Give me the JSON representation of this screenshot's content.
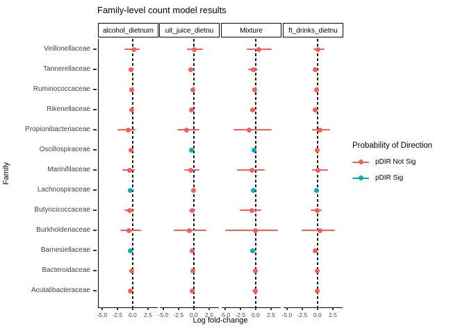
{
  "title": "Family-level count model results",
  "axes": {
    "x_label": "Log fold-change",
    "y_label": "Family"
  },
  "legend": {
    "title": "Probability of Direction",
    "items": [
      {
        "label": "pDIR Not Sig",
        "color": "#F26158"
      },
      {
        "label": "pDIR Sig",
        "color": "#00AFB4"
      }
    ]
  },
  "chart_data": {
    "type": "pointrange-facets",
    "title": "Family-level count model results",
    "xlabel": "Log fold-change",
    "ylabel": "Family",
    "xlim": [
      -5.55,
      4.1
    ],
    "x_tick_values": [
      -5.0,
      -2.5,
      0.0,
      2.5
    ],
    "x_tick_labels": [
      "-5.0",
      "-2.5",
      "0.0",
      "2.5"
    ],
    "zero_line": 0,
    "grid": false,
    "legend_position": "right",
    "colors": {
      "not_sig": "#F26158",
      "sig": "#00AFB4"
    },
    "facets": [
      "alcohol_dietnum",
      "uit_juice_dietnu",
      "Mixture",
      "ft_drinks_dietnu"
    ],
    "families": [
      "Veillonellaceae",
      "Tannerellaceae",
      "Ruminococcaceae",
      "Rikenellaceae",
      "Propionibacteriaceae",
      "Oscillospiraceae",
      "Marinifilaceae",
      "Lachnospiraceae",
      "Butyricicoccaceae",
      "Burkholderiaceae",
      "Barnesiellaceae",
      "Bacteroidaceae",
      "Acutalibacteraceae"
    ],
    "series": [
      {
        "facet": "alcohol_dietnum",
        "points": [
          {
            "v": 0.2,
            "lo": -1.3,
            "hi": 1.1,
            "sig": false
          },
          {
            "v": -0.25,
            "lo": -0.5,
            "hi": 0.05,
            "sig": false
          },
          {
            "v": -0.2,
            "lo": -0.45,
            "hi": 0.05,
            "sig": false
          },
          {
            "v": -0.2,
            "lo": -0.5,
            "hi": 0.1,
            "sig": false
          },
          {
            "v": -0.75,
            "lo": -2.5,
            "hi": 0.5,
            "sig": false
          },
          {
            "v": -0.25,
            "lo": -0.5,
            "hi": 0.05,
            "sig": false
          },
          {
            "v": -0.5,
            "lo": -1.7,
            "hi": 0.4,
            "sig": false
          },
          {
            "v": -0.35,
            "lo": -0.55,
            "hi": -0.1,
            "sig": true
          },
          {
            "v": -0.5,
            "lo": -1.3,
            "hi": 0.2,
            "sig": false
          },
          {
            "v": -0.65,
            "lo": -2.0,
            "hi": 1.4,
            "sig": false
          },
          {
            "v": -0.35,
            "lo": -0.6,
            "hi": -0.1,
            "sig": true
          },
          {
            "v": -0.2,
            "lo": -0.45,
            "hi": 0.1,
            "sig": false
          },
          {
            "v": -0.35,
            "lo": -0.75,
            "hi": 0.05,
            "sig": false
          }
        ]
      },
      {
        "facet": "uit_juice_dietnu",
        "points": [
          {
            "v": 0.05,
            "lo": -1.1,
            "hi": 1.5,
            "sig": false
          },
          {
            "v": -0.45,
            "lo": -0.9,
            "hi": 0.1,
            "sig": false
          },
          {
            "v": -0.2,
            "lo": -0.45,
            "hi": 0.1,
            "sig": false
          },
          {
            "v": -0.35,
            "lo": -0.7,
            "hi": 0.05,
            "sig": false
          },
          {
            "v": -1.2,
            "lo": -2.7,
            "hi": 0.9,
            "sig": false
          },
          {
            "v": -0.35,
            "lo": -0.6,
            "hi": -0.1,
            "sig": true
          },
          {
            "v": -0.45,
            "lo": -1.6,
            "hi": 0.9,
            "sig": false
          },
          {
            "v": -0.1,
            "lo": -0.35,
            "hi": 0.15,
            "sig": false
          },
          {
            "v": -0.3,
            "lo": -0.75,
            "hi": 0.2,
            "sig": false
          },
          {
            "v": -0.7,
            "lo": -3.3,
            "hi": 2.1,
            "sig": false
          },
          {
            "v": -0.3,
            "lo": -0.65,
            "hi": 0.1,
            "sig": false
          },
          {
            "v": -0.2,
            "lo": -0.45,
            "hi": 0.1,
            "sig": false
          },
          {
            "v": -0.25,
            "lo": -0.6,
            "hi": 0.15,
            "sig": false
          }
        ]
      },
      {
        "facet": "Mixture",
        "points": [
          {
            "v": 0.55,
            "lo": -1.5,
            "hi": 2.6,
            "sig": false
          },
          {
            "v": -0.4,
            "lo": -1.2,
            "hi": 0.4,
            "sig": false
          },
          {
            "v": -0.2,
            "lo": -0.5,
            "hi": 0.15,
            "sig": false
          },
          {
            "v": -0.45,
            "lo": -0.85,
            "hi": 0.0,
            "sig": false
          },
          {
            "v": -1.1,
            "lo": -3.6,
            "hi": 2.6,
            "sig": false
          },
          {
            "v": -0.3,
            "lo": -0.6,
            "hi": -0.05,
            "sig": true
          },
          {
            "v": -0.6,
            "lo": -3.0,
            "hi": 1.5,
            "sig": false
          },
          {
            "v": -0.35,
            "lo": -0.6,
            "hi": -0.1,
            "sig": true
          },
          {
            "v": -0.6,
            "lo": -2.6,
            "hi": 0.9,
            "sig": false
          },
          {
            "v": 0.0,
            "lo": -5.0,
            "hi": 3.6,
            "sig": false
          },
          {
            "v": -0.55,
            "lo": -0.85,
            "hi": -0.25,
            "sig": true
          },
          {
            "v": -0.1,
            "lo": -0.45,
            "hi": 0.2,
            "sig": false
          },
          {
            "v": -0.1,
            "lo": -0.5,
            "hi": 0.3,
            "sig": false
          }
        ]
      },
      {
        "facet": "ft_drinks_dietnu",
        "points": [
          {
            "v": 0.1,
            "lo": -0.7,
            "hi": 1.1,
            "sig": false
          },
          {
            "v": -0.35,
            "lo": -0.65,
            "hi": 0.0,
            "sig": false
          },
          {
            "v": -0.2,
            "lo": -0.45,
            "hi": 0.05,
            "sig": false
          },
          {
            "v": -0.4,
            "lo": -0.75,
            "hi": 0.0,
            "sig": false
          },
          {
            "v": 0.4,
            "lo": -0.9,
            "hi": 2.1,
            "sig": false
          },
          {
            "v": -0.1,
            "lo": -0.35,
            "hi": 0.15,
            "sig": false
          },
          {
            "v": 0.1,
            "lo": -0.9,
            "hi": 1.7,
            "sig": false
          },
          {
            "v": -0.2,
            "lo": -0.4,
            "hi": 0.0,
            "sig": true
          },
          {
            "v": 0.0,
            "lo": -1.1,
            "hi": 0.75,
            "sig": false
          },
          {
            "v": 0.4,
            "lo": -2.6,
            "hi": 2.8,
            "sig": false
          },
          {
            "v": -0.4,
            "lo": -0.75,
            "hi": 0.05,
            "sig": false
          },
          {
            "v": -0.1,
            "lo": -0.35,
            "hi": 0.15,
            "sig": false
          },
          {
            "v": 0.0,
            "lo": -0.3,
            "hi": 0.3,
            "sig": false
          }
        ]
      }
    ]
  }
}
